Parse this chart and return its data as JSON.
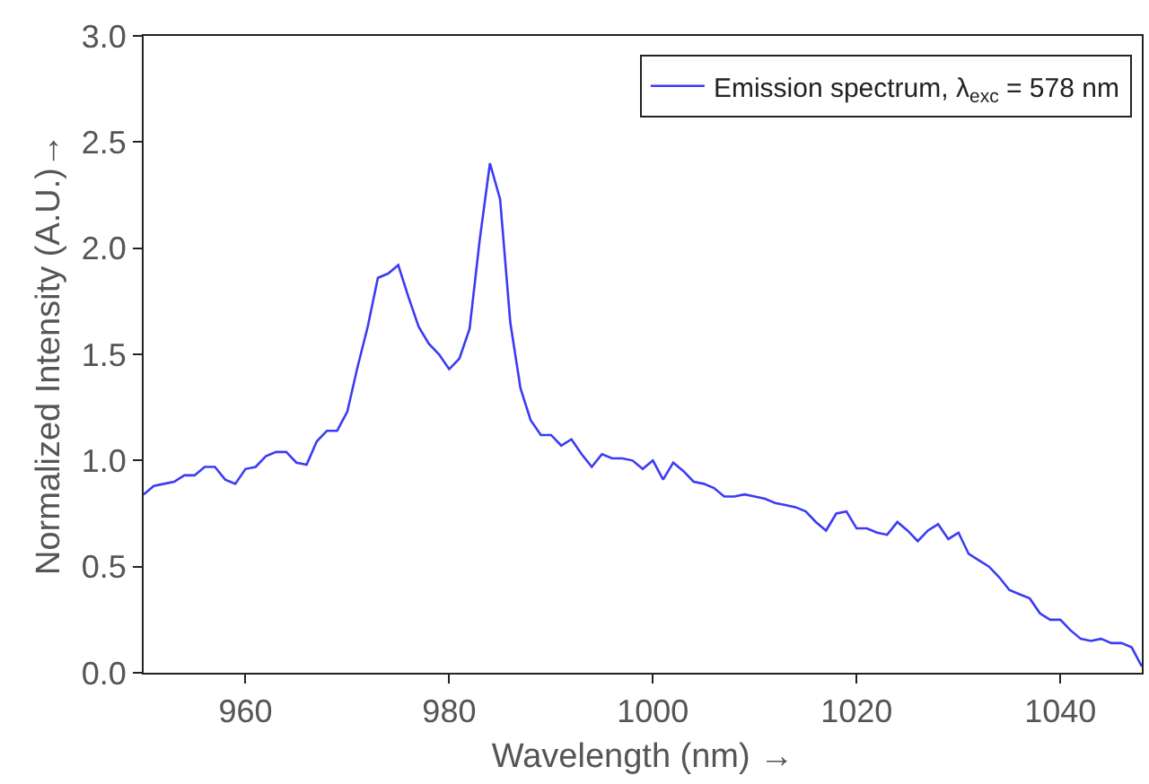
{
  "chart_data": {
    "type": "line",
    "xlabel": "Wavelength (nm) →",
    "ylabel": "Normalized Intensity (A.U.)→",
    "x": [
      950,
      951,
      952,
      953,
      954,
      955,
      956,
      957,
      958,
      959,
      960,
      961,
      962,
      963,
      964,
      965,
      966,
      967,
      968,
      969,
      970,
      971,
      972,
      973,
      974,
      975,
      976,
      977,
      978,
      979,
      980,
      981,
      982,
      983,
      984,
      985,
      986,
      987,
      988,
      989,
      990,
      991,
      992,
      993,
      994,
      995,
      996,
      997,
      998,
      999,
      1000,
      1001,
      1002,
      1003,
      1004,
      1005,
      1006,
      1007,
      1008,
      1009,
      1010,
      1011,
      1012,
      1013,
      1014,
      1015,
      1016,
      1017,
      1018,
      1019,
      1020,
      1021,
      1022,
      1023,
      1024,
      1025,
      1026,
      1027,
      1028,
      1029,
      1030,
      1031,
      1032,
      1033,
      1034,
      1035,
      1036,
      1037,
      1038,
      1039,
      1040,
      1041,
      1042,
      1043,
      1044,
      1045,
      1046,
      1047,
      1048
    ],
    "series": [
      {
        "name": "Emission spectrum, λ$_{exc}$ = 578 nm",
        "color": "#3b3bf5",
        "values": [
          0.84,
          0.88,
          0.89,
          0.9,
          0.93,
          0.93,
          0.97,
          0.97,
          0.91,
          0.89,
          0.96,
          0.97,
          1.02,
          1.04,
          1.04,
          0.99,
          0.98,
          1.09,
          1.14,
          1.14,
          1.23,
          1.44,
          1.63,
          1.86,
          1.88,
          1.92,
          1.77,
          1.63,
          1.55,
          1.5,
          1.43,
          1.48,
          1.62,
          2.04,
          2.4,
          2.23,
          1.65,
          1.34,
          1.19,
          1.12,
          1.12,
          1.07,
          1.1,
          1.03,
          0.97,
          1.03,
          1.01,
          1.01,
          1.0,
          0.96,
          1.0,
          0.91,
          0.99,
          0.95,
          0.9,
          0.89,
          0.87,
          0.83,
          0.83,
          0.84,
          0.83,
          0.82,
          0.8,
          0.79,
          0.78,
          0.76,
          0.71,
          0.67,
          0.75,
          0.76,
          0.68,
          0.68,
          0.66,
          0.65,
          0.71,
          0.67,
          0.62,
          0.67,
          0.7,
          0.63,
          0.66,
          0.56,
          0.53,
          0.5,
          0.45,
          0.39,
          0.37,
          0.35,
          0.28,
          0.25,
          0.25,
          0.2,
          0.16,
          0.15,
          0.16,
          0.14,
          0.14,
          0.12,
          0.03
        ]
      }
    ],
    "xlim": [
      950,
      1048
    ],
    "xticks": [
      960,
      980,
      1000,
      1020,
      1040
    ],
    "ylim": [
      0,
      3
    ],
    "yticks": [
      {
        "value": 0,
        "label": "0.0"
      },
      0.5,
      {
        "value": 1,
        "label": "1.0"
      },
      1.5,
      {
        "value": 2,
        "label": "2.0"
      },
      2.5,
      {
        "value": 3,
        "label": "3.0"
      }
    ],
    "legend": "top right",
    "marker": "none",
    "line_style": "solid"
  }
}
